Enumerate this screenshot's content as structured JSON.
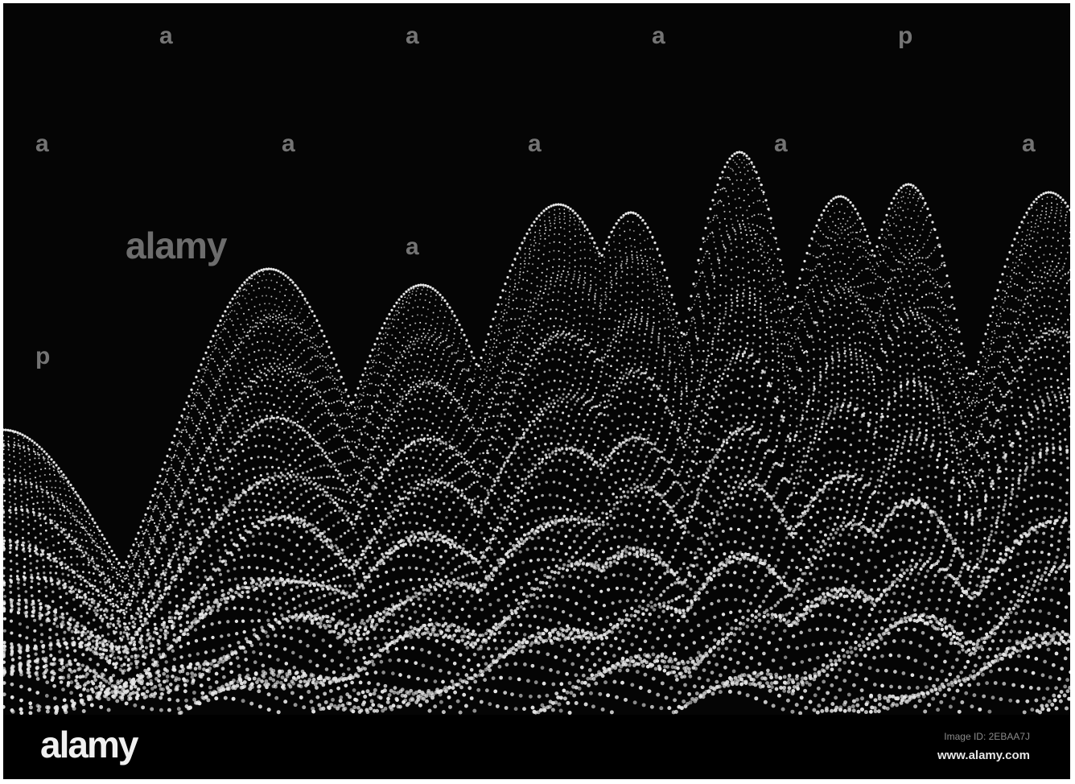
{
  "watermark": {
    "logo_text": "alamy",
    "mark_letter": "a",
    "mark_letter_alt": "p"
  },
  "footer": {
    "logo": "alamy",
    "image_id": "Image ID: 2EBAA7J",
    "url": "www.alamy.com"
  },
  "colors": {
    "background": "#050505",
    "dots": "#e6e6e6",
    "watermark": "#9a9a9a"
  }
}
